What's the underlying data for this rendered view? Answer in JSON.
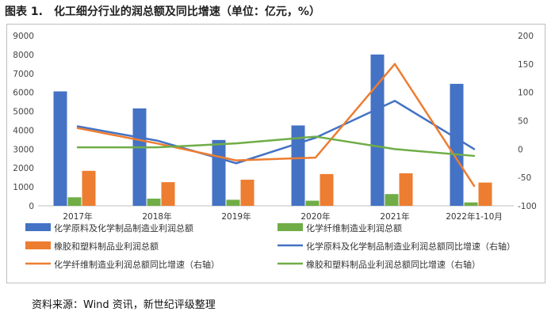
{
  "header": {
    "figure_label": "图表 1.",
    "title": "化工细分行业的润总额及同比增速（单位：亿元，%）"
  },
  "footer": {
    "source": "资料来源：Wind 资讯，新世纪评级整理"
  },
  "chart_data": {
    "type": "bar",
    "categories": [
      "2017年",
      "2018年",
      "2019年",
      "2020年",
      "2021年",
      "2022年1-10月"
    ],
    "y_left": {
      "ylim": [
        0,
        9000
      ],
      "ticks": [
        "0",
        "1000",
        "2000",
        "3000",
        "4000",
        "5000",
        "6000",
        "7000",
        "8000",
        "9000"
      ]
    },
    "y_right": {
      "ylim": [
        -100,
        200
      ],
      "ticks": [
        "-100",
        "-50",
        "0",
        "50",
        "100",
        "150",
        "200"
      ]
    },
    "bar_series": [
      {
        "name": "化学原料及化学制品制造业利润总额",
        "color": "#4472c4",
        "values": [
          6050,
          5150,
          3480,
          4250,
          8000,
          6450
        ]
      },
      {
        "name": "化学纤维制造业利润总额",
        "color": "#70ad47",
        "values": [
          450,
          380,
          320,
          270,
          620,
          180
        ]
      },
      {
        "name": "橡胶和塑料制品业利润总额",
        "color": "#ed7d31",
        "values": [
          1850,
          1250,
          1380,
          1680,
          1720,
          1230
        ]
      }
    ],
    "line_series": [
      {
        "name": "化学原料及化学制品制造业利润总额同比增速（右轴）",
        "color": "#4472c4",
        "axis": "right",
        "values": [
          40,
          15,
          -25,
          20,
          85,
          0
        ]
      },
      {
        "name": "化学纤维制造业利润总额同比增速（右轴）",
        "color": "#ed7d31",
        "axis": "right",
        "values": [
          37,
          10,
          -20,
          -15,
          150,
          -65
        ]
      },
      {
        "name": "橡胶和塑料制品业利润总额同比增速（右轴）",
        "color": "#70ad47",
        "axis": "right",
        "values": [
          3,
          3,
          10,
          22,
          0,
          -12
        ]
      }
    ],
    "legend": {
      "layout": "below-chart, two columns",
      "order": [
        "化学原料及化学制品制造业利润总额",
        "化学纤维制造业利润总额",
        "橡胶和塑料制品业利润总额",
        "化学原料及化学制品制造业利润总额同比增速（右轴）",
        "化学纤维制造业利润总额同比增速（右轴）",
        "橡胶和塑料制品业利润总额同比增速（右轴）"
      ]
    }
  }
}
